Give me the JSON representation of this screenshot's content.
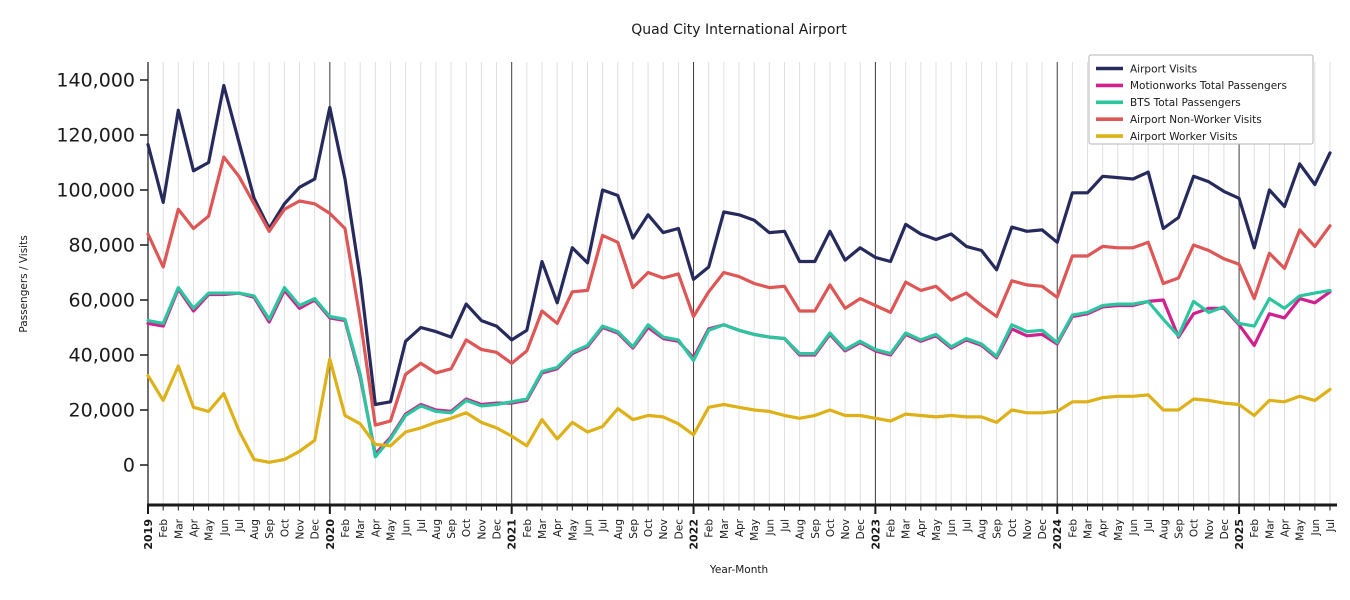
{
  "title": "Quad City International Airport",
  "axes": {
    "x_label": "Year-Month",
    "y_label": "Passengers / Visits",
    "y_tick_values": [
      0,
      20000,
      40000,
      60000,
      80000,
      100000,
      120000,
      140000
    ],
    "y_tick_labels": [
      "0",
      "20,000",
      "40,000",
      "60,000",
      "80,000",
      "100,000",
      "120,000",
      "140,000"
    ]
  },
  "chart_data": {
    "type": "line",
    "title": "Quad City International Airport",
    "xlabel": "Year-Month",
    "ylabel": "Passengers / Visits",
    "ylim": [
      -14000,
      146000
    ],
    "grid": "vertical gridlines at every month, dark separator line at each January",
    "legend_position": "upper right",
    "years": [
      "2019",
      "2020",
      "2021",
      "2022",
      "2023",
      "2024",
      "2025"
    ],
    "x_tick_labels": [
      "2019",
      "Feb",
      "Mar",
      "Apr",
      "May",
      "Jun",
      "Jul",
      "Aug",
      "Sep",
      "Oct",
      "Nov",
      "Dec",
      "2020",
      "Feb",
      "Mar",
      "Apr",
      "May",
      "Jun",
      "Jul",
      "Aug",
      "Sep",
      "Oct",
      "Nov",
      "Dec",
      "2021",
      "Feb",
      "Mar",
      "Apr",
      "May",
      "Jun",
      "Jul",
      "Aug",
      "Sep",
      "Oct",
      "Nov",
      "Dec",
      "2022",
      "Feb",
      "Mar",
      "Apr",
      "May",
      "Jun",
      "Jul",
      "Aug",
      "Sep",
      "Oct",
      "Nov",
      "Dec",
      "2023",
      "Feb",
      "Mar",
      "Apr",
      "May",
      "Jun",
      "Jul",
      "Aug",
      "Sep",
      "Oct",
      "Nov",
      "Dec",
      "2024",
      "Feb",
      "Mar",
      "Apr",
      "May",
      "Jun",
      "Jul",
      "Aug",
      "Sep",
      "Oct",
      "Nov",
      "Dec",
      "2025",
      "Feb",
      "Mar",
      "Apr",
      "May",
      "Jun",
      "Jul"
    ],
    "series": [
      {
        "name": "Airport Visits",
        "color": "#262a5c",
        "values": [
          116500,
          95500,
          129000,
          107000,
          110000,
          138000,
          117500,
          97000,
          86000,
          95000,
          101000,
          104000,
          130000,
          104000,
          68000,
          22000,
          23000,
          45000,
          50000,
          48500,
          46500,
          58500,
          52500,
          50500,
          45500,
          49000,
          74000,
          59000,
          79000,
          73500,
          100000,
          98000,
          82500,
          91000,
          84500,
          86000,
          67500,
          72000,
          92000,
          91000,
          89000,
          84500,
          85000,
          74000,
          74000,
          85000,
          74500,
          79000,
          75500,
          74000,
          87500,
          84000,
          82000,
          84000,
          79500,
          78000,
          71000,
          86500,
          85000,
          85500,
          81000,
          99000,
          99000,
          105000,
          104500,
          104000,
          106500,
          86000,
          90000,
          105000,
          103000,
          99500,
          97000,
          79000,
          100000,
          94000,
          109500,
          102000,
          113500
        ]
      },
      {
        "name": "Motionworks Total Passengers",
        "color": "#d0218e",
        "values": [
          51500,
          50500,
          64000,
          56000,
          62000,
          62000,
          62500,
          61000,
          52000,
          63500,
          57000,
          60000,
          53500,
          52500,
          32000,
          4000,
          10000,
          18500,
          22000,
          20000,
          19500,
          24000,
          22000,
          22500,
          22500,
          23500,
          33500,
          35000,
          40500,
          43000,
          50000,
          48000,
          42500,
          50000,
          46000,
          45000,
          39000,
          49500,
          51000,
          49000,
          47500,
          46500,
          46000,
          40000,
          40000,
          47500,
          41500,
          44500,
          41500,
          40000,
          47500,
          45000,
          47000,
          42500,
          45500,
          43500,
          39000,
          49500,
          47000,
          47500,
          44000,
          54000,
          55000,
          57500,
          58000,
          58000,
          59500,
          60000,
          46500,
          55000,
          57000,
          57000,
          51000,
          43500,
          55000,
          53500,
          60500,
          59000,
          63000
        ]
      },
      {
        "name": "BTS Total Passengers",
        "color": "#2cc5a0",
        "values": [
          52500,
          51500,
          64500,
          57000,
          62500,
          62500,
          62500,
          61500,
          53000,
          64500,
          58000,
          60500,
          54000,
          53000,
          33000,
          3000,
          9500,
          18000,
          21500,
          19500,
          19000,
          23500,
          21500,
          22000,
          23000,
          24000,
          34000,
          35500,
          41000,
          43500,
          50500,
          48500,
          43000,
          51000,
          46500,
          45500,
          38000,
          49000,
          51000,
          49000,
          47500,
          46500,
          46000,
          40500,
          40500,
          48000,
          42000,
          45000,
          42000,
          40500,
          48000,
          45500,
          47500,
          43000,
          46000,
          44000,
          39500,
          51000,
          48500,
          49000,
          44500,
          54500,
          55500,
          58000,
          58500,
          58500,
          59500,
          53000,
          47000,
          59500,
          55500,
          57500,
          51500,
          50500,
          60500,
          57000,
          61500,
          62500,
          63500
        ]
      },
      {
        "name": "Airport Non-Worker Visits",
        "color": "#de5656",
        "values": [
          84000,
          72000,
          93000,
          86000,
          90500,
          112000,
          105000,
          95000,
          85000,
          93000,
          96000,
          95000,
          91500,
          86000,
          53000,
          14500,
          16000,
          33000,
          37000,
          33500,
          35000,
          45500,
          42000,
          41000,
          37000,
          41500,
          56000,
          51500,
          63000,
          63500,
          83500,
          81000,
          64500,
          70000,
          68000,
          69500,
          54000,
          63000,
          70000,
          68500,
          66000,
          64500,
          65000,
          56000,
          56000,
          65500,
          57000,
          60500,
          58000,
          55500,
          66500,
          63500,
          65000,
          60000,
          62500,
          58000,
          54000,
          67000,
          65500,
          65000,
          61000,
          76000,
          76000,
          79500,
          79000,
          79000,
          81000,
          66000,
          68000,
          80000,
          78000,
          75000,
          73000,
          60500,
          77000,
          71500,
          85500,
          79500,
          87000
        ]
      },
      {
        "name": "Airport Worker Visits",
        "color": "#ddb117",
        "values": [
          32500,
          23500,
          36000,
          21000,
          19500,
          26000,
          12500,
          2000,
          1000,
          2000,
          5000,
          9000,
          38500,
          18000,
          15000,
          7500,
          7000,
          12000,
          13500,
          15500,
          17000,
          19000,
          15500,
          13500,
          10500,
          7000,
          16500,
          9500,
          15500,
          12000,
          14000,
          20500,
          16500,
          18000,
          17500,
          15000,
          11000,
          21000,
          22000,
          21000,
          20000,
          19500,
          18000,
          17000,
          18000,
          20000,
          18000,
          18000,
          17000,
          16000,
          18500,
          18000,
          17500,
          18000,
          17500,
          17500,
          15500,
          20000,
          19000,
          19000,
          19500,
          23000,
          23000,
          24500,
          25000,
          25000,
          25500,
          20000,
          20000,
          24000,
          23500,
          22500,
          22000,
          18000,
          23500,
          23000,
          25000,
          23500,
          27500
        ]
      }
    ]
  },
  "legend": {
    "items": [
      "Airport Visits",
      "Motionworks Total Passengers",
      "BTS Total Passengers",
      "Airport Non-Worker Visits",
      "Airport Worker Visits"
    ]
  }
}
